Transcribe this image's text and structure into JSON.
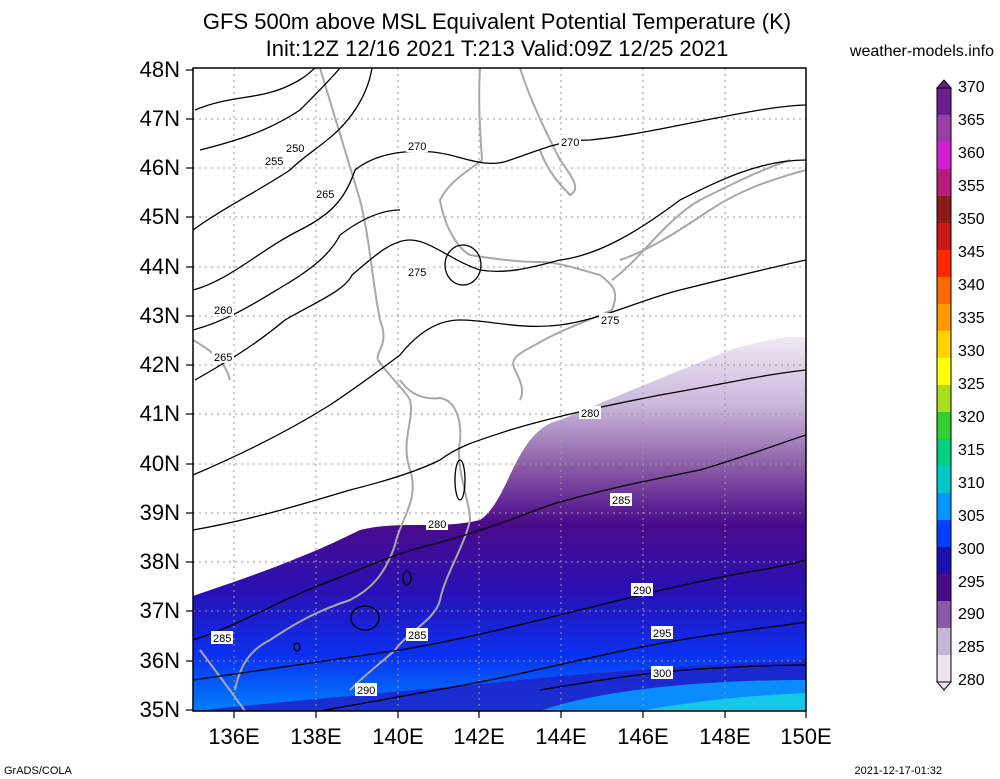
{
  "titles": {
    "line1": "GFS 500m above MSL Equivalent Potential Temperature (K)",
    "line2": "Init:12Z 12/16 2021 T:213 Valid:09Z 12/25 2021",
    "credit": "weather-models.info"
  },
  "axes": {
    "lat_labels": [
      "48N",
      "47N",
      "46N",
      "45N",
      "44N",
      "43N",
      "42N",
      "41N",
      "40N",
      "39N",
      "38N",
      "37N",
      "36N",
      "35N"
    ],
    "lon_labels": [
      "136E",
      "138E",
      "140E",
      "142E",
      "144E",
      "146E",
      "148E",
      "150E"
    ]
  },
  "colorbar": {
    "labels": [
      "370",
      "365",
      "360",
      "355",
      "350",
      "345",
      "340",
      "335",
      "330",
      "325",
      "320",
      "315",
      "310",
      "305",
      "300",
      "295",
      "290",
      "285",
      "280"
    ],
    "colors": [
      "#6a1f8f",
      "#9c3ea8",
      "#d21fd0",
      "#b41e78",
      "#8c1c1c",
      "#c81818",
      "#ff2a00",
      "#ff6a00",
      "#ff9a00",
      "#ffd200",
      "#ffff00",
      "#a8e020",
      "#30d030",
      "#00d080",
      "#00c8c8",
      "#0096ff",
      "#0040ff",
      "#1a10b0",
      "#4a0a8a",
      "#8a5aa6",
      "#c8b4d8",
      "#ece4f2"
    ]
  },
  "contour_labels": [
    "250",
    "255",
    "265",
    "270",
    "270",
    "275",
    "275",
    "260",
    "265",
    "280",
    "280",
    "285",
    "285",
    "290",
    "295",
    "300",
    "290",
    "285"
  ],
  "footer": {
    "left": "GrADS/COLA",
    "right": "2021-12-17-01:32"
  }
}
